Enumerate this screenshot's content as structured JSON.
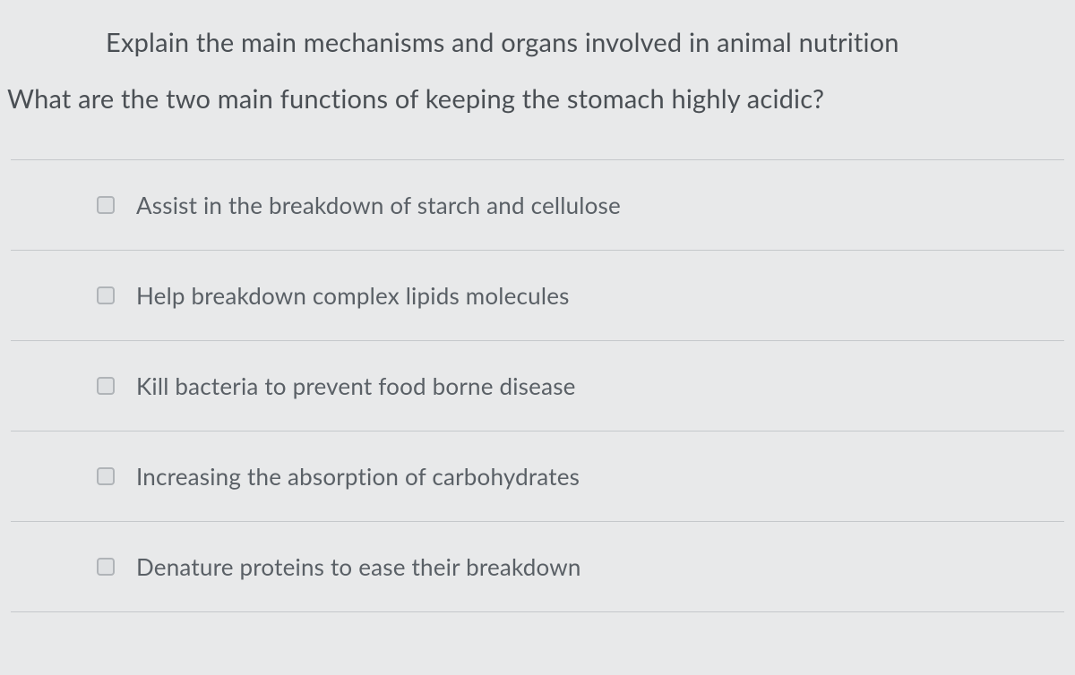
{
  "quiz": {
    "topic": "Explain the main mechanisms and organs involved in animal nutrition",
    "question": "What are the two main functions of keeping the stomach highly acidic?",
    "options": [
      {
        "label": "Assist in the breakdown of starch and cellulose",
        "checked": false
      },
      {
        "label": "Help breakdown complex lipids molecules",
        "checked": false
      },
      {
        "label": "Kill bacteria to prevent food borne disease",
        "checked": false
      },
      {
        "label": "Increasing the absorption of carbohydrates",
        "checked": false
      },
      {
        "label": "Denature proteins to ease their breakdown",
        "checked": false
      }
    ],
    "colors": {
      "background": "#e8e9ea",
      "text_primary": "#4a4f54",
      "text_option": "#5a6066",
      "divider": "#c5c8cb",
      "checkbox_border": "#b0b4b8",
      "checkbox_fill": "#dfe1e3"
    },
    "typography": {
      "title_fontsize": 29,
      "question_fontsize": 29,
      "option_fontsize": 26,
      "font_family": "Segoe UI"
    }
  }
}
